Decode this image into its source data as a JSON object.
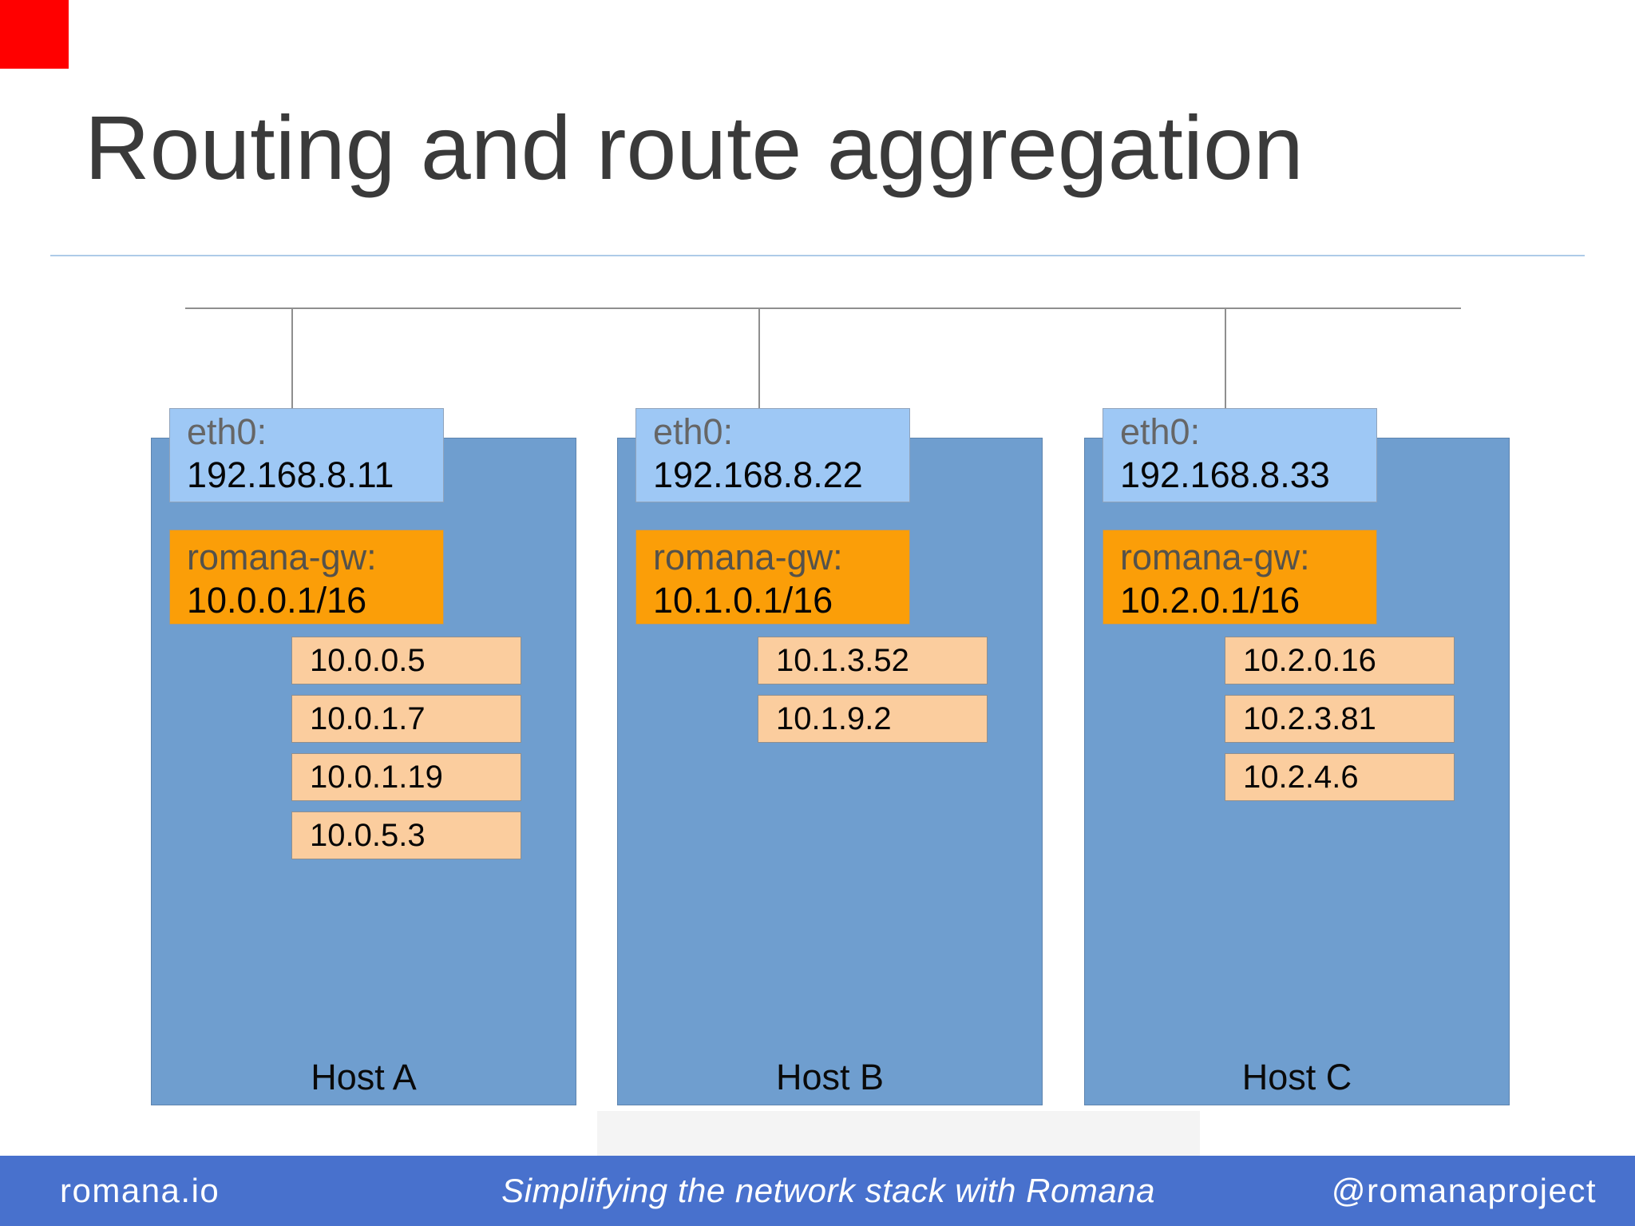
{
  "title": "Routing and route aggregation",
  "decor": {
    "red_square": "red-accent-square"
  },
  "network": {
    "hosts": [
      {
        "name": "Host A",
        "eth0": {
          "label": "eth0:",
          "ip": "192.168.8.11"
        },
        "gateway": {
          "label": "romana-gw:",
          "cidr": "10.0.0.1/16"
        },
        "endpoints": [
          "10.0.0.5",
          "10.0.1.7",
          "10.0.1.19",
          "10.0.5.3"
        ]
      },
      {
        "name": "Host B",
        "eth0": {
          "label": "eth0:",
          "ip": "192.168.8.22"
        },
        "gateway": {
          "label": "romana-gw:",
          "cidr": "10.1.0.1/16"
        },
        "endpoints": [
          "10.1.3.52",
          "10.1.9.2"
        ]
      },
      {
        "name": "Host C",
        "eth0": {
          "label": "eth0:",
          "ip": "192.168.8.33"
        },
        "gateway": {
          "label": "romana-gw:",
          "cidr": "10.2.0.1/16"
        },
        "endpoints": [
          "10.2.0.16",
          "10.2.3.81",
          "10.2.4.6"
        ]
      }
    ]
  },
  "footer": {
    "left": "romana.io",
    "center": "Simplifying the network stack with Romana",
    "right": "@romanaproject"
  },
  "colors": {
    "accent_red": "#ff0000",
    "title_text": "#3a3a3a",
    "host_fill": "#6f9ecf",
    "eth0_fill": "#9ec8f5",
    "gateway_fill": "#fb9e08",
    "endpoint_fill": "#fbcd9e",
    "footer_bg": "#4871cd",
    "connector_line": "#8f8f8f",
    "separator_line": "#aecbe8"
  }
}
